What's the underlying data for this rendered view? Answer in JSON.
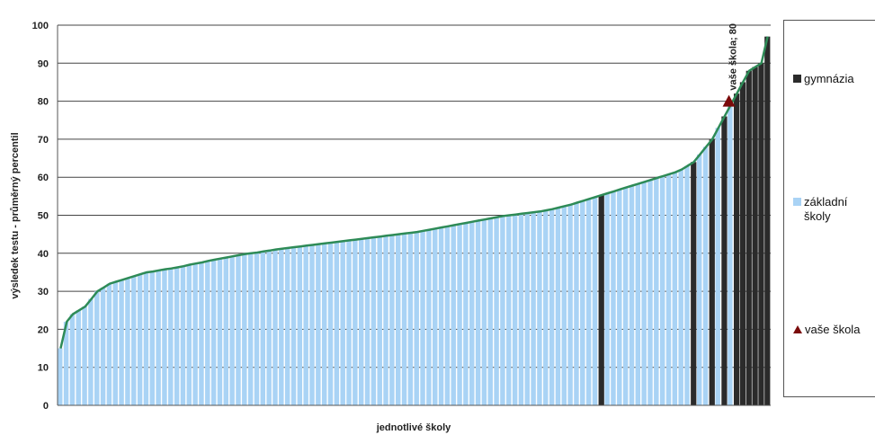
{
  "chart_data": {
    "type": "bar",
    "ylabel": "výsledek testu - průměrný percentil",
    "xlabel": "jednotlivé školy",
    "ylim": [
      0,
      100
    ],
    "yticks": [
      0,
      10,
      20,
      30,
      40,
      50,
      60,
      70,
      80,
      90,
      100
    ],
    "grid": true,
    "legend_position": "right",
    "series": [
      {
        "name": "gymnázia",
        "color": "#2b2b2b"
      },
      {
        "name": "základní školy",
        "color": "#a9d3f5"
      },
      {
        "name": "vaše škola",
        "color": "#7a0a0a"
      }
    ],
    "highlight": {
      "label": "vaše škola; 80",
      "value": 80
    },
    "curve_color": "#2e8b57",
    "values": [
      15,
      22,
      24,
      25,
      26,
      28,
      30,
      31,
      32,
      32.5,
      33,
      33.5,
      34,
      34.5,
      35,
      35.2,
      35.5,
      35.8,
      36,
      36.3,
      36.6,
      37,
      37.3,
      37.6,
      38,
      38.3,
      38.6,
      38.9,
      39.2,
      39.5,
      39.8,
      40,
      40.2,
      40.5,
      40.7,
      41,
      41.2,
      41.4,
      41.6,
      41.8,
      42,
      42.2,
      42.4,
      42.6,
      42.8,
      43,
      43.2,
      43.4,
      43.6,
      43.8,
      44,
      44.2,
      44.4,
      44.6,
      44.8,
      45,
      45.2,
      45.4,
      45.6,
      45.9,
      46.2,
      46.5,
      46.8,
      47.1,
      47.4,
      47.7,
      48,
      48.3,
      48.6,
      48.9,
      49.2,
      49.5,
      49.8,
      50,
      50.2,
      50.4,
      50.6,
      50.8,
      51,
      51.3,
      51.6,
      52,
      52.4,
      52.8,
      53.3,
      53.8,
      54.3,
      54.8,
      55.3,
      55.8,
      56.3,
      56.8,
      57.3,
      57.8,
      58.3,
      58.8,
      59.3,
      59.8,
      60.3,
      60.8,
      61.3,
      62,
      63,
      64,
      66,
      68,
      70,
      73,
      76,
      79,
      82,
      85,
      88,
      89,
      90,
      97
    ],
    "gymnazia_flags": [
      0,
      0,
      0,
      0,
      0,
      0,
      0,
      0,
      0,
      0,
      0,
      0,
      0,
      0,
      0,
      0,
      0,
      0,
      0,
      0,
      0,
      0,
      0,
      0,
      0,
      0,
      0,
      0,
      0,
      0,
      0,
      0,
      0,
      0,
      0,
      0,
      0,
      0,
      0,
      0,
      0,
      0,
      0,
      0,
      0,
      0,
      0,
      0,
      0,
      0,
      0,
      0,
      0,
      0,
      0,
      0,
      0,
      0,
      0,
      0,
      0,
      0,
      0,
      0,
      0,
      0,
      0,
      0,
      0,
      0,
      0,
      0,
      0,
      0,
      0,
      0,
      0,
      0,
      0,
      0,
      0,
      0,
      0,
      0,
      0,
      0,
      0,
      0,
      1,
      0,
      0,
      0,
      0,
      0,
      0,
      0,
      0,
      0,
      0,
      0,
      0,
      0,
      0,
      1,
      0,
      0,
      1,
      0,
      1,
      0,
      1,
      1,
      1,
      1,
      1,
      1
    ]
  }
}
